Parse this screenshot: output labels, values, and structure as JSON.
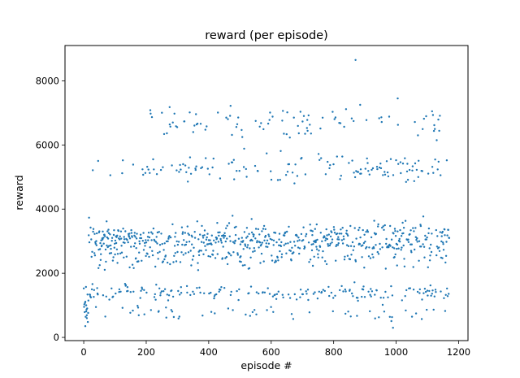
{
  "chart_data": {
    "type": "scatter",
    "title": "reward (per episode)",
    "xlabel": "episode #",
    "ylabel": "reward",
    "xlim": [
      -60,
      1230
    ],
    "ylim": [
      -100,
      9100
    ],
    "xticks": [
      0,
      200,
      400,
      600,
      800,
      1000,
      1200
    ],
    "yticks": [
      0,
      2000,
      4000,
      6000,
      8000
    ],
    "xtick_labels": [
      "0",
      "200",
      "400",
      "600",
      "800",
      "1000",
      "1200"
    ],
    "ytick_labels": [
      "0",
      "2000",
      "4000",
      "6000",
      "8000"
    ],
    "grid": false,
    "legend": "none",
    "marker_color": "#1f77b4",
    "n_points": 1170,
    "x_range": [
      0,
      1170
    ],
    "clusters": [
      {
        "center": 3000,
        "spread": 450
      },
      {
        "center": 1400,
        "spread": 200
      },
      {
        "center": 5300,
        "spread": 350
      },
      {
        "center": 6700,
        "spread": 350
      },
      {
        "center": 2400,
        "spread": 250
      },
      {
        "center": 750,
        "spread": 200
      }
    ],
    "outliers": [
      {
        "x": 870,
        "y": 8650
      },
      {
        "x": 1005,
        "y": 7450
      },
      {
        "x": 885,
        "y": 7250
      },
      {
        "x": 470,
        "y": 7220
      },
      {
        "x": 275,
        "y": 7180
      },
      {
        "x": 1115,
        "y": 7050
      },
      {
        "x": 5,
        "y": 350
      },
      {
        "x": 10,
        "y": 600
      },
      {
        "x": 8,
        "y": 1000
      },
      {
        "x": 990,
        "y": 300
      }
    ]
  }
}
